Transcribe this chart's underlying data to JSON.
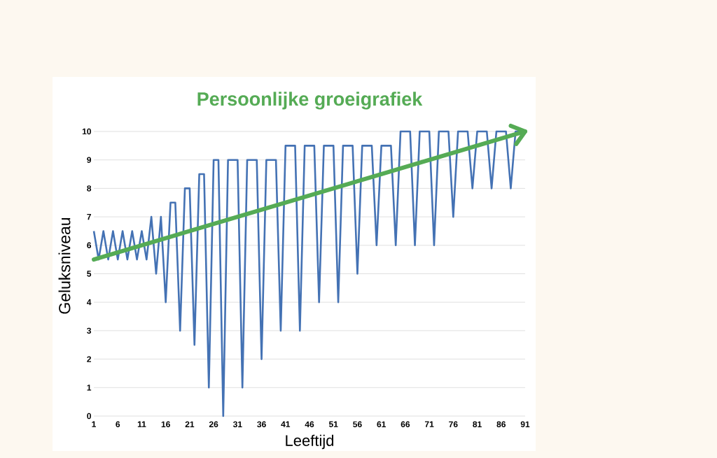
{
  "chart_data": {
    "type": "line",
    "title": "Persoonlijke groeigrafiek",
    "xlabel": "Leeftijd",
    "ylabel": "Geluksniveau",
    "x": [
      1,
      2,
      3,
      4,
      5,
      6,
      7,
      8,
      9,
      10,
      11,
      12,
      13,
      14,
      15,
      16,
      17,
      18,
      19,
      20,
      21,
      22,
      23,
      24,
      25,
      26,
      27,
      28,
      29,
      30,
      31,
      32,
      33,
      34,
      35,
      36,
      37,
      38,
      39,
      40,
      41,
      42,
      43,
      44,
      45,
      46,
      47,
      48,
      49,
      50,
      51,
      52,
      53,
      54,
      55,
      56,
      57,
      58,
      59,
      60,
      61,
      62,
      63,
      64,
      65,
      66,
      67,
      68,
      69,
      70,
      71,
      72,
      73,
      74,
      75,
      76,
      77,
      78,
      79,
      80,
      81,
      82,
      83,
      84,
      85,
      86,
      87,
      88,
      89,
      90,
      91
    ],
    "series": [
      {
        "color": "#4472b4",
        "values": [
          6.5,
          5.5,
          6.5,
          5.5,
          6.5,
          5.5,
          6.5,
          5.5,
          6.5,
          5.5,
          6.5,
          5.5,
          7,
          5,
          7,
          4,
          7.5,
          7.5,
          3,
          8,
          8,
          2.5,
          8.5,
          8.5,
          1,
          9,
          9,
          0,
          9,
          9,
          9,
          1,
          9,
          9,
          9,
          2,
          9,
          9,
          9,
          3,
          9.5,
          9.5,
          9.5,
          3,
          9.5,
          9.5,
          9.5,
          4,
          9.5,
          9.5,
          9.5,
          4,
          9.5,
          9.5,
          9.5,
          5,
          9.5,
          9.5,
          9.5,
          6,
          9.5,
          9.5,
          9.5,
          6,
          10,
          10,
          10,
          6,
          10,
          10,
          10,
          6,
          10,
          10,
          10,
          7,
          10,
          10,
          10,
          8,
          10,
          10,
          10,
          8,
          10,
          10,
          10,
          8,
          10,
          10,
          10
        ]
      },
      {
        "type": "line",
        "color": "#55ab55",
        "x": [
          1,
          91
        ],
        "values": [
          5.5,
          10
        ]
      }
    ],
    "xlim": [
      1,
      91
    ],
    "xticks": [
      1,
      6,
      11,
      16,
      21,
      26,
      31,
      36,
      41,
      46,
      51,
      56,
      61,
      66,
      71,
      76,
      81,
      86,
      91
    ],
    "ylim": [
      0,
      10
    ],
    "yticks": [
      0,
      1,
      2,
      3,
      4,
      5,
      6,
      7,
      8,
      9,
      10
    ],
    "grid": "y"
  }
}
